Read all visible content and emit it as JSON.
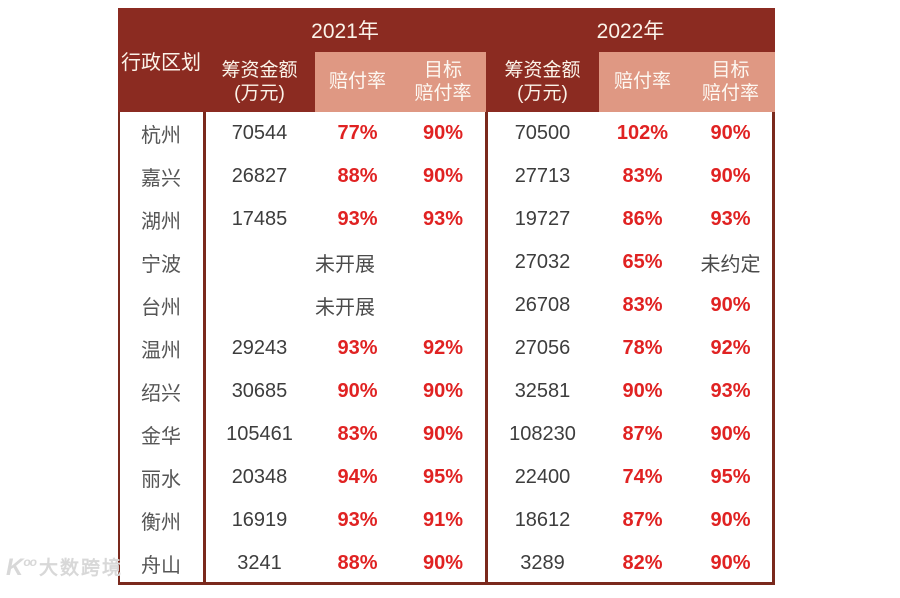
{
  "header": {
    "region": "行政区划",
    "year1": "2021年",
    "year2": "2022年",
    "funding_l1": "筹资金额",
    "funding_l2": "(万元)",
    "payout": "赔付率",
    "target_l1": "目标",
    "target_l2": "赔付率"
  },
  "rows": [
    {
      "region": "杭州",
      "f1": "70544",
      "p1": "77%",
      "t1": "90%",
      "f2": "70500",
      "p2": "102%",
      "t2": "90%"
    },
    {
      "region": "嘉兴",
      "f1": "26827",
      "p1": "88%",
      "t1": "90%",
      "f2": "27713",
      "p2": "83%",
      "t2": "90%"
    },
    {
      "region": "湖州",
      "f1": "17485",
      "p1": "93%",
      "t1": "93%",
      "f2": "19727",
      "p2": "86%",
      "t2": "93%"
    },
    {
      "region": "宁波",
      "merged": "未开展",
      "f2": "27032",
      "p2": "65%",
      "t2": "未约定"
    },
    {
      "region": "台州",
      "merged": "未开展",
      "f2": "26708",
      "p2": "83%",
      "t2": "90%"
    },
    {
      "region": "温州",
      "f1": "29243",
      "p1": "93%",
      "t1": "92%",
      "f2": "27056",
      "p2": "78%",
      "t2": "92%"
    },
    {
      "region": "绍兴",
      "f1": "30685",
      "p1": "90%",
      "t1": "90%",
      "f2": "32581",
      "p2": "90%",
      "t2": "93%"
    },
    {
      "region": "金华",
      "f1": "105461",
      "p1": "83%",
      "t1": "90%",
      "f2": "108230",
      "p2": "87%",
      "t2": "90%"
    },
    {
      "region": "丽水",
      "f1": "20348",
      "p1": "94%",
      "t1": "95%",
      "f2": "22400",
      "p2": "74%",
      "t2": "95%"
    },
    {
      "region": "衡州",
      "f1": "16919",
      "p1": "93%",
      "t1": "91%",
      "f2": "18612",
      "p2": "87%",
      "t2": "90%"
    },
    {
      "region": "舟山",
      "f1": "3241",
      "p1": "88%",
      "t1": "90%",
      "f2": "3289",
      "p2": "82%",
      "t2": "90%"
    }
  ],
  "watermark": {
    "logo": "K",
    "logo_sup": "oo",
    "text": "大数跨境"
  },
  "colors": {
    "header_bg": "#8B2B21",
    "subheader_salmon": "#DF9883",
    "border": "#7A291D",
    "percent_red": "#E02222",
    "amount_text": "#3D3D3D",
    "region_text": "#565656"
  },
  "chart_data": {
    "type": "table",
    "title": "",
    "column_groups": [
      "行政区划",
      "2021年",
      "2022年"
    ],
    "columns": [
      "行政区划",
      "2021年 筹资金额(万元)",
      "2021年 赔付率",
      "2021年 目标赔付率",
      "2022年 筹资金额(万元)",
      "2022年 赔付率",
      "2022年 目标赔付率"
    ],
    "rows": [
      [
        "杭州",
        70544,
        "77%",
        "90%",
        70500,
        "102%",
        "90%"
      ],
      [
        "嘉兴",
        26827,
        "88%",
        "90%",
        27713,
        "83%",
        "90%"
      ],
      [
        "湖州",
        17485,
        "93%",
        "93%",
        19727,
        "86%",
        "93%"
      ],
      [
        "宁波",
        "未开展",
        "未开展",
        "未开展",
        27032,
        "65%",
        "未约定"
      ],
      [
        "台州",
        "未开展",
        "未开展",
        "未开展",
        26708,
        "83%",
        "90%"
      ],
      [
        "温州",
        29243,
        "93%",
        "92%",
        27056,
        "78%",
        "92%"
      ],
      [
        "绍兴",
        30685,
        "90%",
        "90%",
        32581,
        "90%",
        "93%"
      ],
      [
        "金华",
        105461,
        "83%",
        "90%",
        108230,
        "87%",
        "90%"
      ],
      [
        "丽水",
        20348,
        "94%",
        "95%",
        22400,
        "74%",
        "95%"
      ],
      [
        "衡州",
        16919,
        "93%",
        "91%",
        18612,
        "87%",
        "90%"
      ],
      [
        "舟山",
        3241,
        "88%",
        "90%",
        3289,
        "82%",
        "90%"
      ]
    ]
  }
}
